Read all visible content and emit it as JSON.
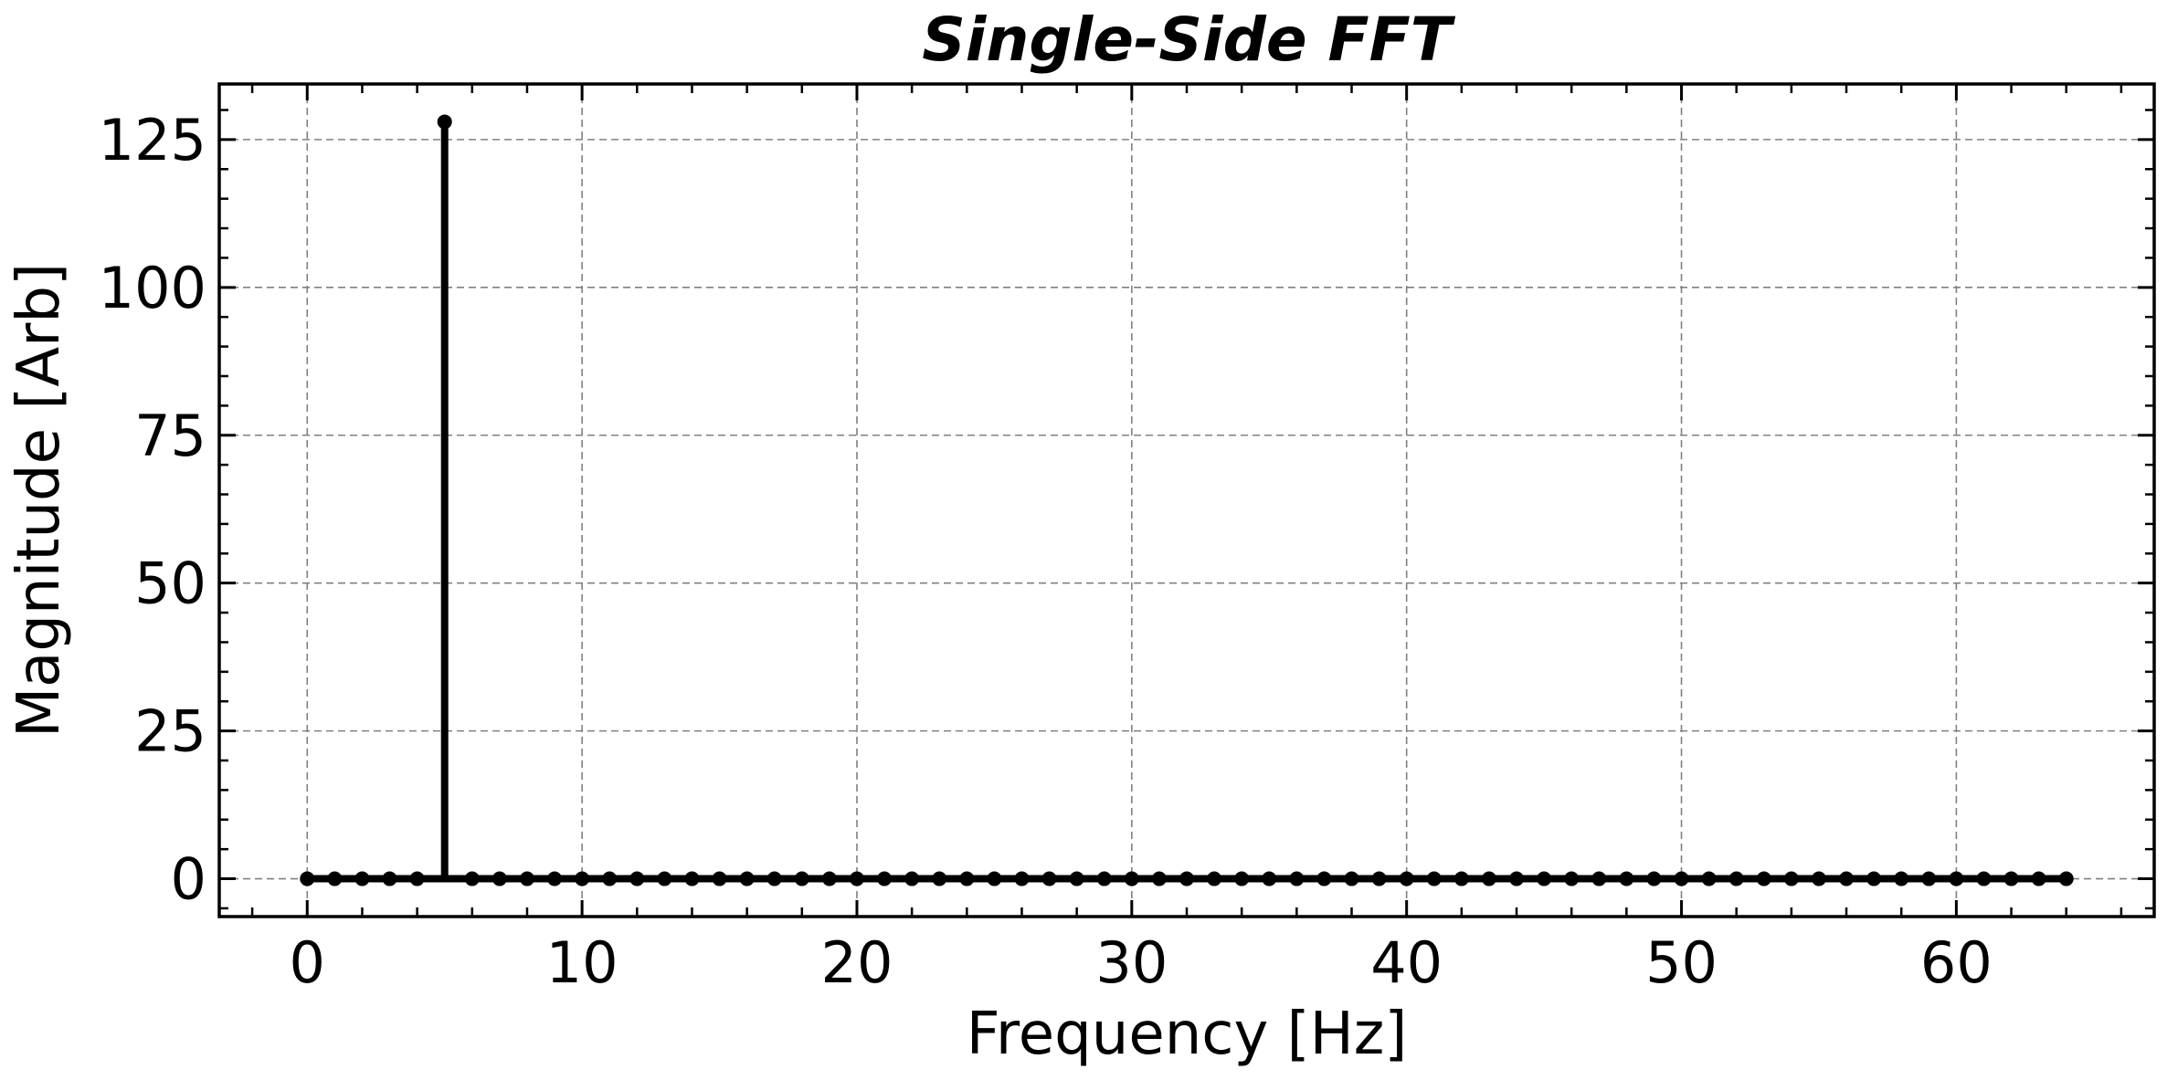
{
  "chart_data": {
    "type": "stem",
    "title": "Single-Side FFT",
    "xlabel": "Frequency [Hz]",
    "ylabel": "Magnitude [Arb]",
    "xlim": [
      -3.2,
      67.2
    ],
    "ylim": [
      -6.4,
      134.4
    ],
    "xticks": [
      0,
      10,
      20,
      30,
      40,
      50,
      60
    ],
    "yticks": [
      0,
      25,
      50,
      75,
      100,
      125
    ],
    "x_minor_step": 2,
    "y_minor_step": 5,
    "grid": true,
    "x": [
      0,
      1,
      2,
      3,
      4,
      5,
      6,
      7,
      8,
      9,
      10,
      11,
      12,
      13,
      14,
      15,
      16,
      17,
      18,
      19,
      20,
      21,
      22,
      23,
      24,
      25,
      26,
      27,
      28,
      29,
      30,
      31,
      32,
      33,
      34,
      35,
      36,
      37,
      38,
      39,
      40,
      41,
      42,
      43,
      44,
      45,
      46,
      47,
      48,
      49,
      50,
      51,
      52,
      53,
      54,
      55,
      56,
      57,
      58,
      59,
      60,
      61,
      62,
      63,
      64
    ],
    "values": [
      0,
      0,
      0,
      0,
      0,
      128,
      0,
      0,
      0,
      0,
      0,
      0,
      0,
      0,
      0,
      0,
      0,
      0,
      0,
      0,
      0,
      0,
      0,
      0,
      0,
      0,
      0,
      0,
      0,
      0,
      0,
      0,
      0,
      0,
      0,
      0,
      0,
      0,
      0,
      0,
      0,
      0,
      0,
      0,
      0,
      0,
      0,
      0,
      0,
      0,
      0,
      0,
      0,
      0,
      0,
      0,
      0,
      0,
      0,
      0,
      0,
      0,
      0,
      0,
      0
    ],
    "line_color": "#000000",
    "grid_color": "#808080"
  }
}
